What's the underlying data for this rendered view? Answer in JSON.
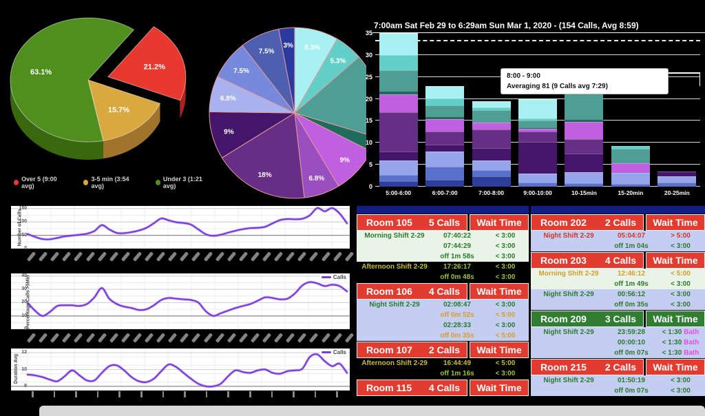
{
  "pie3d_legend": {
    "items": [
      {
        "label": "Over 5 (9:00 avg)",
        "color": "#e8392e"
      },
      {
        "label": "3-5 min (3:54 avg)",
        "color": "#d9a93f"
      },
      {
        "label": "Under 3 (1:21 avg)",
        "color": "#4e8f1e"
      }
    ]
  },
  "chart_data": [
    {
      "id": "wait-time-share-pie-3d",
      "type": "pie",
      "labels": [
        "Over 5 (9:00 avg)",
        "3-5 min (3:54 avg)",
        "Under 3 (1:21 avg)"
      ],
      "values": [
        21.2,
        15.7,
        63.1
      ],
      "display_labels": [
        "21.2%",
        "15.7%",
        "63.1%"
      ],
      "colors": [
        "#e8392e",
        "#d9a93f",
        "#4e8f1e"
      ],
      "dark_colors": [
        "#a8241c",
        "#a0742a",
        "#39680f"
      ],
      "exploded_index": 0,
      "start_angle": 54,
      "legend_position": "bottom"
    },
    {
      "id": "calls-distribution-pie",
      "type": "pie",
      "values": [
        8.3,
        5.3,
        16.0,
        2.8,
        9,
        6.8,
        18,
        9,
        6.8,
        7.5,
        7.5,
        3
      ],
      "labels": [
        "8.3%",
        "5.3%",
        "",
        "",
        "9%",
        "6.8%",
        "18%",
        "9%",
        "6.8%",
        "7.5%",
        "7.5%",
        "3%"
      ],
      "colors": [
        "#a9f0f2",
        "#63cfc9",
        "#4f9e96",
        "#1f6b5e",
        "#c05fe0",
        "#9a4fc0",
        "#662e85",
        "#45156b",
        "#a9b2ee",
        "#7789dd",
        "#4d5fae",
        "#2a3a9e"
      ],
      "stroke": "#e59a9a",
      "start_angle": 90
    },
    {
      "id": "calls-by-wait-bucket-stacked-bar",
      "type": "bar",
      "title": "7:00am Sat Feb 29 to 6:29am Sun Mar 1, 2020 - (154 Calls, Avg 8:59)",
      "categories": [
        "5:00-6:00",
        "6:00-7:00",
        "7:00-8:00",
        "9:00-10:00",
        "10-15min",
        "15-20min",
        "20-25min"
      ],
      "ylim": [
        0,
        35
      ],
      "yticks": [
        0,
        5,
        10,
        15,
        20,
        25,
        30,
        35
      ],
      "dashed_gridline": 33,
      "series": [
        {
          "name": "seg-navy",
          "color": "#2c3d9b",
          "values": [
            1.2,
            1.5,
            2.3,
            0.0,
            0.0,
            0.0,
            0.0
          ]
        },
        {
          "name": "seg-blue",
          "color": "#5a71cc",
          "values": [
            1.4,
            3.0,
            1.5,
            1.0,
            0.8,
            0.6,
            1.0
          ]
        },
        {
          "name": "seg-periwinkle",
          "color": "#96a4ea",
          "values": [
            3.4,
            3.5,
            2.2,
            2.0,
            2.5,
            2.6,
            1.3
          ]
        },
        {
          "name": "seg-deep-purple",
          "color": "#45156b",
          "values": [
            2.0,
            1.6,
            2.8,
            7.2,
            4.3,
            0.0,
            1.2
          ]
        },
        {
          "name": "seg-purple",
          "color": "#662e85",
          "values": [
            9.0,
            3.0,
            4.2,
            2.3,
            3.2,
            0.0,
            0.0
          ]
        },
        {
          "name": "seg-magenta",
          "color": "#c05fe0",
          "values": [
            4.0,
            2.8,
            1.6,
            0.7,
            3.9,
            2.2,
            0.0
          ]
        },
        {
          "name": "seg-dark-teal",
          "color": "#1f6b5e",
          "values": [
            0.8,
            0.6,
            0.0,
            0.3,
            0.7,
            0.0,
            0.0
          ]
        },
        {
          "name": "seg-teal",
          "color": "#4f9e96",
          "values": [
            4.7,
            2.5,
            2.8,
            1.6,
            6.1,
            3.2,
            0.0
          ]
        },
        {
          "name": "seg-mid-teal",
          "color": "#63cfc9",
          "values": [
            3.5,
            1.6,
            0.7,
            0.4,
            0.4,
            0.6,
            0.0
          ]
        },
        {
          "name": "seg-cyan",
          "color": "#a9f0f2",
          "values": [
            5.0,
            2.9,
            1.4,
            4.5,
            0.8,
            0.0,
            0.0
          ]
        }
      ],
      "tooltip": {
        "line1": "8:00 - 9:00",
        "line2": "Averaging 81 (9 Calls avg 7:29)"
      }
    },
    {
      "id": "number-of-calls-line",
      "type": "line",
      "ylabel": "Number of Calls",
      "yticks": [
        0,
        50,
        100,
        150
      ],
      "ylim": [
        0,
        160
      ],
      "minor_step": 25,
      "dark_line": 50,
      "color": "#7a3bdb",
      "values": [
        55,
        44,
        36,
        35,
        40,
        46,
        49,
        52,
        56,
        66,
        88,
        72,
        59,
        58,
        62,
        68,
        78,
        95,
        113,
        106,
        99,
        96,
        90,
        72,
        54,
        48,
        52,
        60,
        67,
        73,
        77,
        78,
        82,
        95,
        107,
        111,
        110,
        112,
        125,
        152,
        140,
        152,
        132,
        95
      ]
    },
    {
      "id": "percentage-calls-over-5min-line",
      "type": "line",
      "ylabel": "Percentage Calls >5Min",
      "legend": "Calls",
      "yticks": [
        0,
        10,
        20,
        30,
        40
      ],
      "ylim": [
        0,
        42
      ],
      "minor_step": 5,
      "dark_line": 10,
      "color": "#7a3bdb",
      "values": [
        20,
        14,
        10,
        13,
        17.5,
        18,
        18,
        17.5,
        19,
        24,
        31,
        23,
        19,
        17,
        16,
        14.5,
        15,
        18,
        22,
        23.5,
        23,
        22.5,
        22,
        20,
        13.5,
        10,
        12,
        14,
        16,
        17.5,
        19,
        21.5,
        24,
        23.5,
        22.5,
        23,
        27,
        33,
        35.5,
        34.5,
        32.5,
        33.5,
        32.5,
        28.5
      ]
    },
    {
      "id": "duration-avg-line",
      "type": "line",
      "ylabel": "Duration Avg",
      "legend": "Calls",
      "yticks": [
        8,
        10,
        12
      ],
      "ylim": [
        7.5,
        12.5
      ],
      "minor_step": 1,
      "dark_line": 8,
      "color": "#7a3bdb",
      "values": [
        9.4,
        9.3,
        9.1,
        8.8,
        8.6,
        9.2,
        9.9,
        9.3,
        8.7,
        8.7,
        9.6,
        10.4,
        10.5,
        9.9,
        9.1,
        8.6,
        8.5,
        8.9,
        9.8,
        10.6,
        10.3,
        9.6,
        8.9,
        8.3,
        8.0,
        8.0,
        8.3,
        9.2,
        9.9,
        9.7,
        9.6,
        9.9,
        10.0,
        9.6,
        9.5,
        9.8,
        9.9,
        10.1,
        11.5,
        11.8,
        11.0,
        10.4,
        10.7,
        9.6
      ]
    }
  ],
  "tables": {
    "middle": {
      "sections": [
        {
          "room": "Room 105",
          "calls": "5 Calls",
          "wait": "Wait Time",
          "header": "red",
          "rows": [
            {
              "shift": "Morning Shift 2-29",
              "time": "07:40:22",
              "wait": "< 3:00",
              "bg": "green",
              "sc": "green",
              "tc": "green",
              "wc": "green"
            },
            {
              "shift": "",
              "time": "07:44:29",
              "wait": "< 3:00",
              "bg": "green",
              "tc": "green",
              "wc": "green"
            },
            {
              "shift": "",
              "time": "off 1m 58s",
              "wait": "< 3:00",
              "bg": "green",
              "tc": "green",
              "wc": "green"
            },
            {
              "shift": "Afternoon Shift 2-29",
              "time": "17:26:17",
              "wait": "< 3:00",
              "bg": "black",
              "sc": "yellow",
              "tc": "yellowgreen",
              "wc": "yellowgreen"
            },
            {
              "shift": "",
              "time": "off 0m 48s",
              "wait": "< 3:00",
              "bg": "black",
              "tc": "yellowgreen",
              "wc": "yellowgreen"
            }
          ]
        },
        {
          "room": "Room 106",
          "calls": "4 Calls",
          "wait": "Wait Time",
          "header": "red",
          "rows": [
            {
              "shift": "Night Shift 2-29",
              "time": "02:08:47",
              "wait": "< 3:00",
              "bg": "lav",
              "sc": "green",
              "tc": "green",
              "wc": "green"
            },
            {
              "shift": "",
              "time": "off 0m 52s",
              "wait": "< 5:00",
              "bg": "lav",
              "tc": "orange",
              "wc": "orange"
            },
            {
              "shift": "",
              "time": "02:28:33",
              "wait": "< 3:00",
              "bg": "lav",
              "tc": "green",
              "wc": "green"
            },
            {
              "shift": "",
              "time": "off 0m 35s",
              "wait": "< 5:00",
              "bg": "lav",
              "tc": "orange",
              "wc": "orange"
            }
          ]
        },
        {
          "room": "Room 107",
          "calls": "2 Calls",
          "wait": "Wait Time",
          "header": "red",
          "rows": [
            {
              "shift": "Afternoon Shift 2-29",
              "time": "16:44:49",
              "wait": "< 5:00",
              "bg": "black",
              "sc": "yellow",
              "tc": "yellow",
              "wc": "yellow"
            },
            {
              "shift": "",
              "time": "off 1m 16s",
              "wait": "< 3:00",
              "bg": "black",
              "tc": "yellowgreen",
              "wc": "yellowgreen"
            }
          ]
        },
        {
          "room": "Room 115",
          "calls": "4 Calls",
          "wait": "Wait Time",
          "header": "red",
          "rows": []
        }
      ]
    },
    "right": {
      "sections": [
        {
          "room": "Room 202",
          "calls": "2 Calls",
          "wait": "Wait Time",
          "header": "red",
          "rows": [
            {
              "shift": "Night Shift 2-29",
              "time": "05:04:07",
              "wait": "> 5:00",
              "bg": "lav",
              "sc": "red",
              "tc": "red",
              "wc": "red"
            },
            {
              "shift": "",
              "time": "off 1m 04s",
              "wait": "< 3:00",
              "bg": "lav",
              "tc": "green",
              "wc": "green"
            }
          ]
        },
        {
          "room": "Room 203",
          "calls": "4 Calls",
          "wait": "Wait Time",
          "header": "red",
          "rows": [
            {
              "shift": "Morning Shift 2-29",
              "time": "12:46:12",
              "wait": "< 5:00",
              "bg": "green",
              "sc": "orange",
              "tc": "orange",
              "wc": "orange"
            },
            {
              "shift": "",
              "time": "off 1m 49s",
              "wait": "< 3:00",
              "bg": "green",
              "tc": "green",
              "wc": "green"
            },
            {
              "shift": "Night Shift 2-29",
              "time": "00:56:12",
              "wait": "< 3:00",
              "bg": "lav",
              "sc": "green",
              "tc": "green",
              "wc": "green"
            },
            {
              "shift": "",
              "time": "off 0m 35s",
              "wait": "< 3:00",
              "bg": "lav",
              "tc": "green",
              "wc": "green"
            }
          ]
        },
        {
          "room": "Room 209",
          "calls": "3 Calls",
          "wait": "Wait Time",
          "header": "green",
          "rows": [
            {
              "shift": "Night Shift 2-29",
              "time": "23:59:28",
              "wait": "< 1:30",
              "suffix": "Bath",
              "bg": "lav",
              "sc": "green",
              "tc": "green",
              "wc": "green"
            },
            {
              "shift": "",
              "time": "00:00:10",
              "wait": "< 1:30",
              "suffix": "Bath",
              "bg": "lav",
              "tc": "green",
              "wc": "green"
            },
            {
              "shift": "",
              "time": "off 0m 07s",
              "wait": "< 1:30",
              "suffix": "Bath",
              "bg": "lav",
              "tc": "green",
              "wc": "green"
            }
          ]
        },
        {
          "room": "Room 215",
          "calls": "2 Calls",
          "wait": "Wait Time",
          "header": "red",
          "rows": [
            {
              "shift": "Night Shift 2-29",
              "time": "01:50:19",
              "wait": "< 3:00",
              "bg": "lav",
              "sc": "green",
              "tc": "green",
              "wc": "green"
            },
            {
              "shift": "",
              "time": "off 0m 07s",
              "wait": "< 3:00",
              "bg": "lav",
              "tc": "green",
              "wc": "green"
            }
          ]
        }
      ]
    }
  }
}
